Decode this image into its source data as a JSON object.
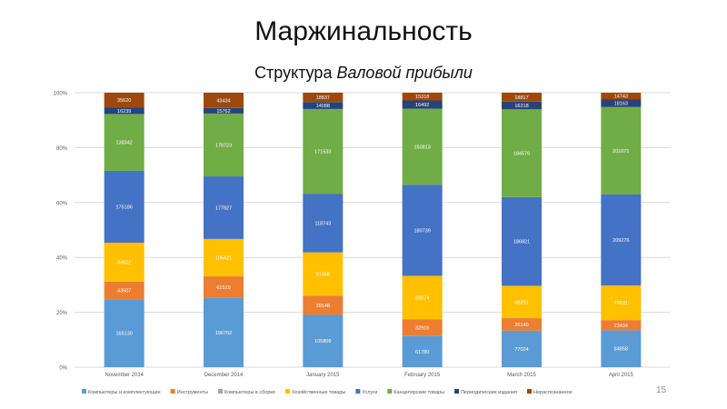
{
  "slide": {
    "title": "Маржинальность",
    "subtitle_plain": "Структура ",
    "subtitle_italic": "Валовой прибыли",
    "page_number": "15"
  },
  "chart_data": {
    "type": "bar",
    "stacked": true,
    "normalized": true,
    "title": "",
    "xlabel": "",
    "ylabel": "",
    "ylim": [
      0,
      1
    ],
    "yticks": [
      "0%",
      "20%",
      "40%",
      "60%",
      "80%",
      "100%"
    ],
    "grid": true,
    "legend_position": "bottom",
    "categories": [
      "November 2014",
      "December 2014",
      "January 2015",
      "February 2015",
      "March 2015",
      "April 2015"
    ],
    "series": [
      {
        "name": "Компьютеры и комплектующие",
        "color": "#5b9bd5",
        "values": [
          165130,
          196702,
          105809,
          61780,
          77024,
          84858
        ]
      },
      {
        "name": "Инструменты",
        "color": "#ed7d31",
        "values": [
          43507,
          61519,
          39148,
          32916,
          26140,
          23434
        ]
      },
      {
        "name": "Компьютеры в сборке",
        "color": "#a5a5a5",
        "values": [
          0,
          0,
          0,
          0,
          0,
          0
        ]
      },
      {
        "name": "Хозяйственные товары",
        "color": "#ffc000",
        "values": [
          94612,
          106421,
          87458,
          86674,
          68201,
          79631
        ]
      },
      {
        "name": "Услуги",
        "color": "#4472c4",
        "values": [
          175186,
          177827,
          118743,
          180739,
          186821,
          209276
        ]
      },
      {
        "name": "Канцелярские товары",
        "color": "#70ad47",
        "values": [
          138342,
          178723,
          171533,
          150813,
          184576,
          201071
        ]
      },
      {
        "name": "Периодические издания",
        "color": "#264478",
        "values": [
          16239,
          15762,
          14088,
          16492,
          16218,
          18163
        ]
      },
      {
        "name": "Нераспознанное",
        "color": "#9e480e",
        "values": [
          35620,
          43434,
          18837,
          15318,
          18817,
          14743
        ]
      }
    ]
  }
}
